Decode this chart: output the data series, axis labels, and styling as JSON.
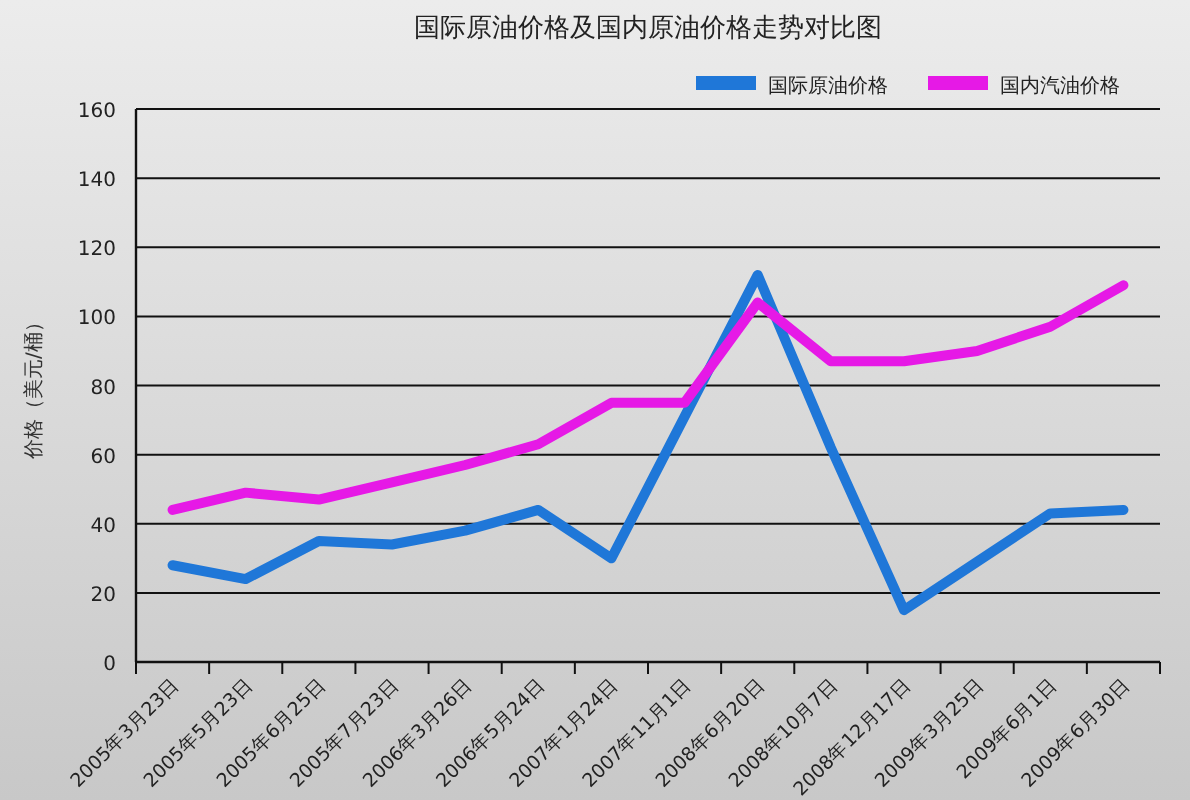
{
  "chart_data": {
    "type": "line",
    "title": "国际原油价格及国内原油价格走势对比图",
    "ylabel": "价格（美元/桶）",
    "categories": [
      "2005年3月23日",
      "2005年5月23日",
      "2005年6月25日",
      "2005年7月23日",
      "2006年3月26日",
      "2006年5月24日",
      "2007年1月24日",
      "2007年11月1日",
      "2008年6月20日",
      "2008年10月7日",
      "2008年12月17日",
      "2009年3月25日",
      "2009年6月1日",
      "2009年6月30日"
    ],
    "series": [
      {
        "name": "国际原油价格",
        "color": "#1f77d8",
        "values": [
          28,
          24,
          35,
          34,
          38,
          44,
          30,
          71,
          112,
          62,
          15,
          29,
          43,
          44
        ]
      },
      {
        "name": "国内汽油价格",
        "color": "#e619e6",
        "values": [
          44,
          49,
          47,
          52,
          57,
          63,
          75,
          75,
          104,
          87,
          87,
          90,
          97,
          109
        ]
      }
    ],
    "ylim": [
      0,
      160
    ],
    "yticks": [
      0,
      20,
      40,
      60,
      80,
      100,
      120,
      140,
      160
    ],
    "grid": "y",
    "legend": "top right",
    "marker": "none",
    "line_style": "solid"
  }
}
